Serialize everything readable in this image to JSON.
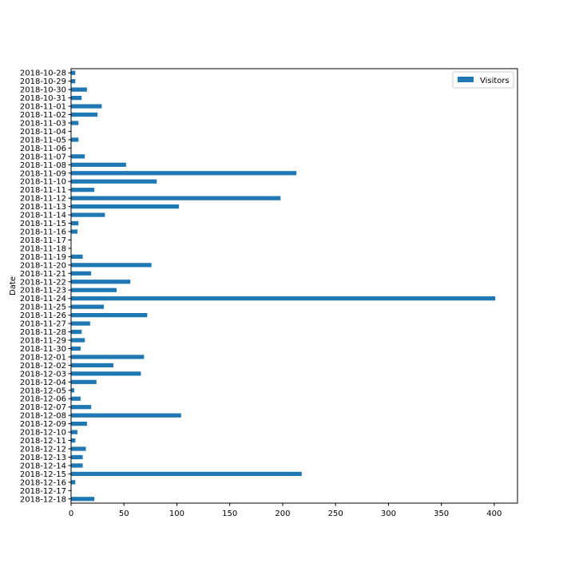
{
  "chart_data": {
    "type": "bar",
    "orientation": "horizontal",
    "title": "",
    "ylabel": "Date",
    "xlabel": "",
    "xlim": [
      0,
      422
    ],
    "xticks": [
      0,
      50,
      100,
      150,
      200,
      250,
      300,
      350,
      400
    ],
    "grid": false,
    "legend_position": "top-right",
    "categories": [
      "2018-10-28",
      "2018-10-29",
      "2018-10-30",
      "2018-10-31",
      "2018-11-01",
      "2018-11-02",
      "2018-11-03",
      "2018-11-04",
      "2018-11-05",
      "2018-11-06",
      "2018-11-07",
      "2018-11-08",
      "2018-11-09",
      "2018-11-10",
      "2018-11-11",
      "2018-11-12",
      "2018-11-13",
      "2018-11-14",
      "2018-11-15",
      "2018-11-16",
      "2018-11-17",
      "2018-11-18",
      "2018-11-19",
      "2018-11-20",
      "2018-11-21",
      "2018-11-22",
      "2018-11-23",
      "2018-11-24",
      "2018-11-25",
      "2018-11-26",
      "2018-11-27",
      "2018-11-28",
      "2018-11-29",
      "2018-11-30",
      "2018-12-01",
      "2018-12-02",
      "2018-12-03",
      "2018-12-04",
      "2018-12-05",
      "2018-12-06",
      "2018-12-07",
      "2018-12-08",
      "2018-12-09",
      "2018-12-10",
      "2018-12-11",
      "2018-12-12",
      "2018-12-13",
      "2018-12-14",
      "2018-12-15",
      "2018-12-16",
      "2018-12-17",
      "2018-12-18"
    ],
    "series": [
      {
        "name": "Visitors",
        "color": "#1f77b4",
        "values": [
          4,
          4,
          15,
          10,
          29,
          25,
          7,
          0,
          7,
          0,
          13,
          52,
          213,
          81,
          22,
          198,
          102,
          32,
          7,
          6,
          0,
          0,
          11,
          76,
          19,
          56,
          43,
          401,
          31,
          72,
          18,
          10,
          13,
          9,
          69,
          40,
          66,
          24,
          3,
          9,
          19,
          104,
          15,
          6,
          4,
          14,
          11,
          11,
          218,
          4,
          0,
          22
        ]
      }
    ]
  }
}
